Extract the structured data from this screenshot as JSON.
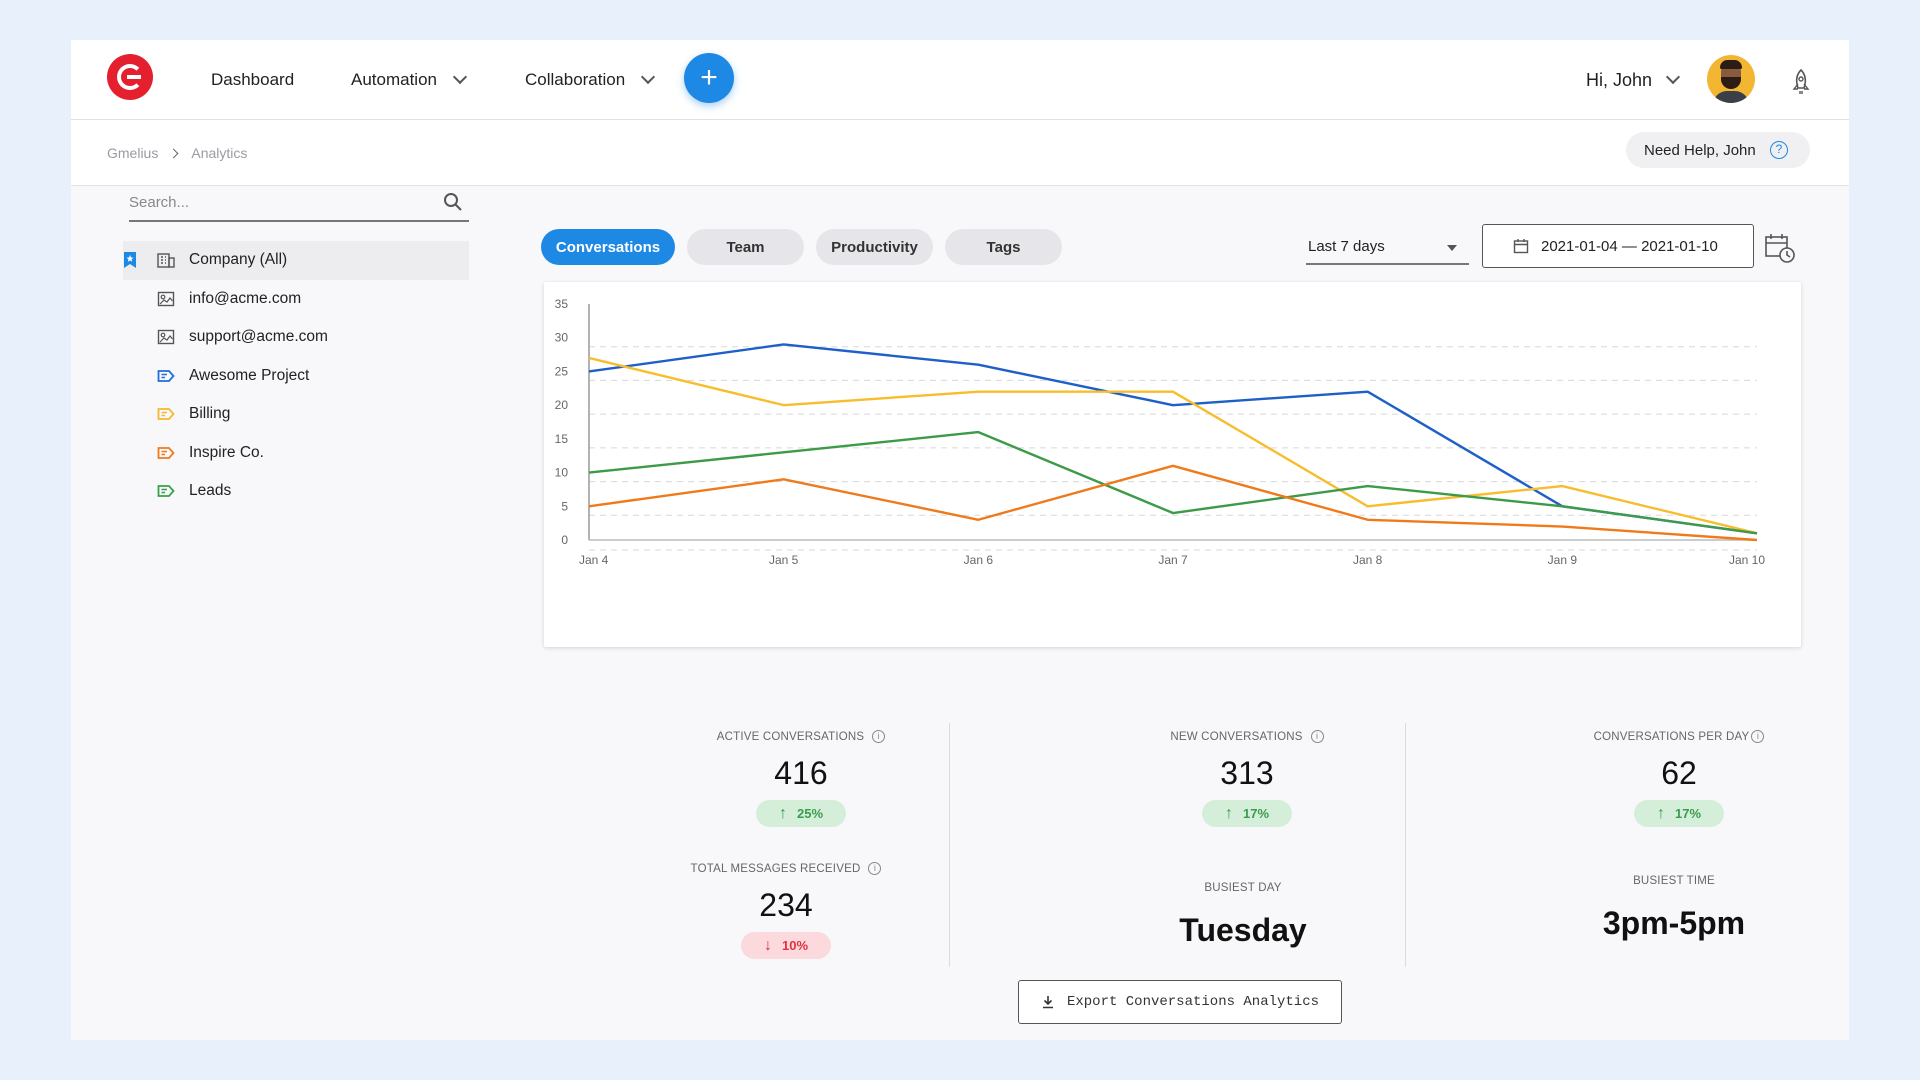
{
  "nav": {
    "dashboard": "Dashboard",
    "automation": "Automation",
    "collaboration": "Collaboration",
    "plus": "+"
  },
  "user": {
    "greeting": "Hi, John"
  },
  "breadcrumb": {
    "root": "Gmelius",
    "current": "Analytics"
  },
  "help": {
    "label": "Need Help, John",
    "icon": "?"
  },
  "sidebar": {
    "search_placeholder": "Search...",
    "items": [
      {
        "label": "Company (All)",
        "icon": "building-icon",
        "color": "#555555"
      },
      {
        "label": "info@acme.com",
        "icon": "inbox-icon",
        "color": "#555555"
      },
      {
        "label": "support@acme.com",
        "icon": "inbox-icon",
        "color": "#555555"
      },
      {
        "label": "Awesome Project",
        "icon": "label-icon",
        "color": "#1e6fd9"
      },
      {
        "label": "Billing",
        "icon": "label-icon",
        "color": "#f5b82e"
      },
      {
        "label": "Inspire Co.",
        "icon": "label-icon",
        "color": "#f07a1a"
      },
      {
        "label": "Leads",
        "icon": "label-icon",
        "color": "#3aa14a"
      }
    ]
  },
  "tabs": [
    "Conversations",
    "Team",
    "Productivity",
    "Tags"
  ],
  "filter": {
    "range": "Last 7 days",
    "dates": "2021-01-04 — 2021-01-10"
  },
  "chart_data": {
    "type": "line",
    "categories": [
      "Jan 4",
      "Jan 5",
      "Jan 6",
      "Jan 7",
      "Jan 8",
      "Jan 9",
      "Jan 10"
    ],
    "yticks": [
      0,
      5,
      10,
      15,
      20,
      25,
      30,
      35
    ],
    "ylim": [
      0,
      35
    ],
    "grid": true,
    "series": [
      {
        "color": "#1e5fc8",
        "values": [
          25,
          29,
          26,
          20,
          22,
          5,
          1
        ]
      },
      {
        "color": "#f7bd2c",
        "values": [
          27,
          20,
          22,
          22,
          5,
          8,
          1
        ]
      },
      {
        "color": "#3c9a48",
        "values": [
          10,
          13,
          16,
          4,
          8,
          5,
          1
        ]
      },
      {
        "color": "#f07a1a",
        "values": [
          5,
          9,
          3,
          11,
          3,
          2,
          0
        ]
      }
    ]
  },
  "stats": {
    "active": {
      "label": "ACTIVE CONVERSATIONS",
      "value": "416",
      "change": "25%"
    },
    "new": {
      "label": "NEW CONVERSATIONS",
      "value": "313",
      "change": "17%"
    },
    "per_day": {
      "label": "CONVERSATIONS PER DAY",
      "value": "62",
      "change": "17%"
    },
    "messages": {
      "label": "TOTAL MESSAGES RECEIVED",
      "value": "234",
      "change": "10%"
    },
    "busiest_day": {
      "label": "BUSIEST DAY",
      "value": "Tuesday"
    },
    "busiest_time": {
      "label": "BUSIEST TIME",
      "value": "3pm-5pm"
    }
  },
  "export": {
    "label": "Export Conversations Analytics"
  }
}
